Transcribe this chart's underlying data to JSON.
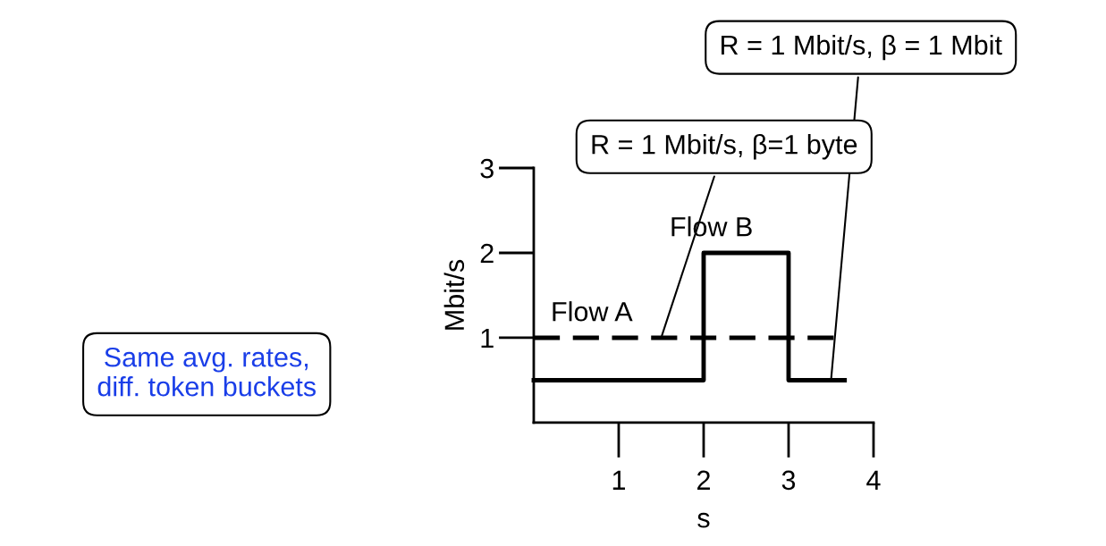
{
  "chart_data": {
    "type": "step",
    "xlabel": "s",
    "ylabel": "Mbit/s",
    "series": [
      {
        "name": "Flow A",
        "type": "line",
        "line_style": "dashed",
        "color": "#000000",
        "x": [
          0,
          3.56
        ],
        "values": [
          1,
          1
        ]
      },
      {
        "name": "Flow B",
        "line_style": "solid",
        "color": "#000000",
        "x": [
          0,
          2,
          3,
          3.66
        ],
        "values": [
          0.5,
          2,
          0.5,
          0.5
        ]
      }
    ],
    "annotations": [
      {
        "text": "R = 1 Mbit/s, β=1 byte",
        "x": 1.5,
        "y": 1
      },
      {
        "text": "R = 1 Mbit/s, β = 1 Mbit",
        "x": 3.5,
        "y": 0.5
      },
      "Same avg. rates,\ndiff. token buckets"
    ],
    "xlim": [
      0,
      4
    ],
    "ylim": [
      0,
      3
    ],
    "xticks": [
      1,
      2,
      3,
      4
    ],
    "yticks": [
      1,
      2,
      3
    ],
    "grid": false,
    "legend": false
  }
}
